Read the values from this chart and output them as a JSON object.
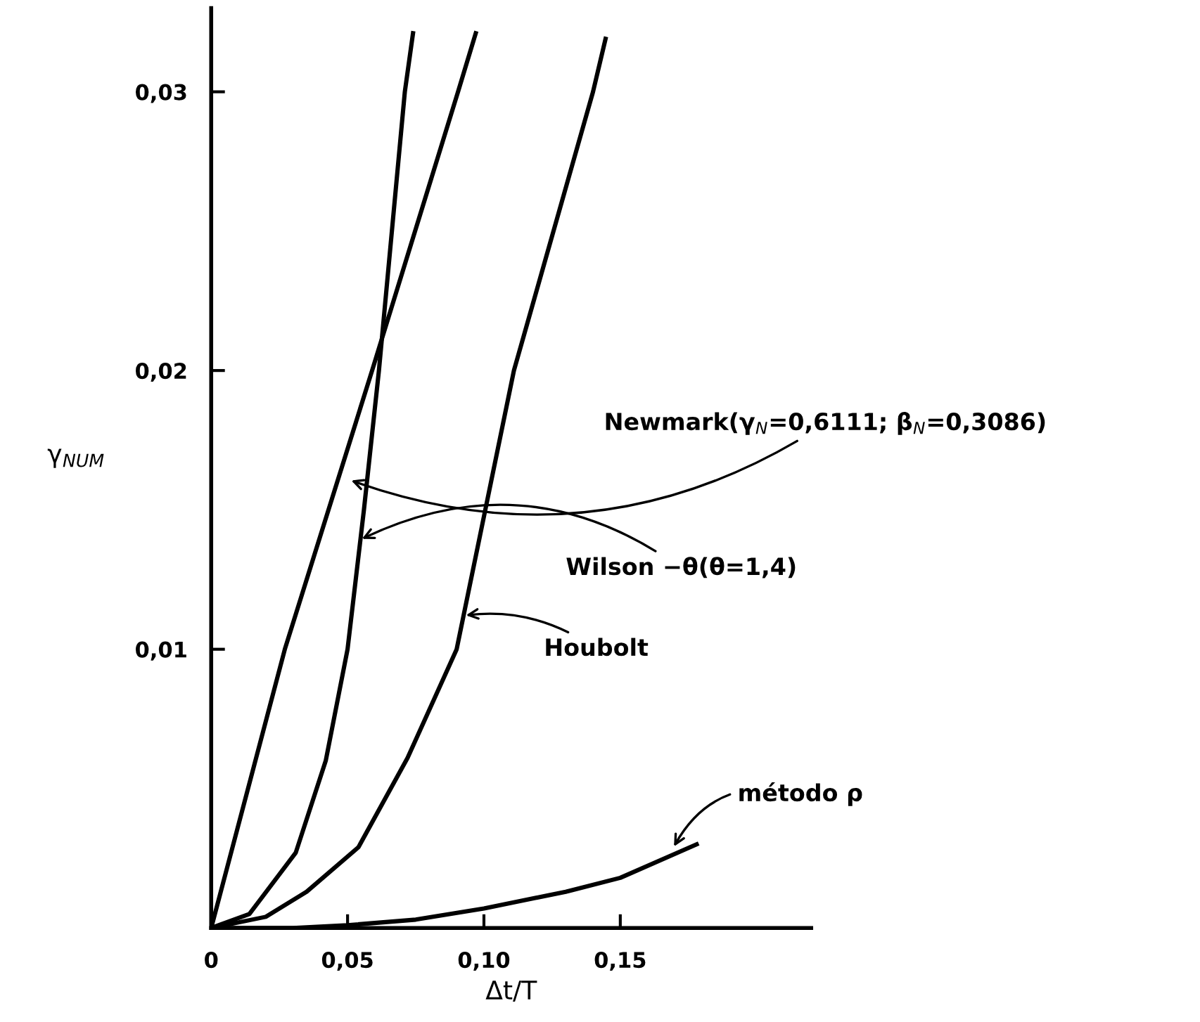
{
  "chart_data": {
    "type": "line",
    "xlabel": "Δt/T",
    "ylabel": "γ$_{NUM}$",
    "xlim": [
      0,
      0.22
    ],
    "ylim": [
      0,
      0.033
    ],
    "xticks": [
      {
        "value": 0,
        "label": "0"
      },
      {
        "value": 0.05,
        "label": "0,05"
      },
      {
        "value": 0.1,
        "label": "0,10"
      },
      {
        "value": 0.15,
        "label": "0,15"
      }
    ],
    "yticks": [
      {
        "value": 0.01,
        "label": "0,01"
      },
      {
        "value": 0.02,
        "label": "0,02"
      },
      {
        "value": 0.03,
        "label": "0,03"
      }
    ],
    "grid": false,
    "legend": false,
    "marker": "none",
    "line_style": "solid",
    "series": [
      {
        "color": "#000000",
        "x": [
          0,
          0.027,
          0.059,
          0.0905,
          0.097
        ],
        "values": [
          0,
          0.01,
          0.02,
          0.03,
          0.0321
        ]
      },
      {
        "color": "#000000",
        "x": [
          0,
          0.014,
          0.031,
          0.042,
          0.05,
          0.056,
          0.0615,
          0.071,
          0.074
        ],
        "values": [
          0,
          0.0005,
          0.0027,
          0.006,
          0.01,
          0.015,
          0.02,
          0.03,
          0.0321
        ]
      },
      {
        "color": "#000000",
        "x": [
          0,
          0.02,
          0.035,
          0.054,
          0.072,
          0.09,
          0.111,
          0.14,
          0.1446
        ],
        "values": [
          0,
          0.0004,
          0.0013,
          0.0029,
          0.0061,
          0.01,
          0.02,
          0.03,
          0.0319
        ]
      },
      {
        "color": "#000000",
        "x": [
          0,
          0.03,
          0.05,
          0.075,
          0.1,
          0.13,
          0.15,
          0.178
        ],
        "values": [
          0,
          0,
          0.0001,
          0.0003,
          0.0007,
          0.0013,
          0.0018,
          0.003
        ]
      }
    ],
    "annotations": [
      {
        "text": "Newmark(γ$_{N}$=0,6111; β$_{N}$=0,3086)",
        "x": 0.05,
        "y": 0.0161
      },
      {
        "text": "Wilson −θ(θ=1,4)",
        "x": 0.054,
        "y": 0.0139
      },
      {
        "text": "Houbolt",
        "x": 0.092,
        "y": 0.0112
      },
      {
        "text": "método ρ",
        "x": 0.169,
        "y": 0.0028
      }
    ]
  }
}
